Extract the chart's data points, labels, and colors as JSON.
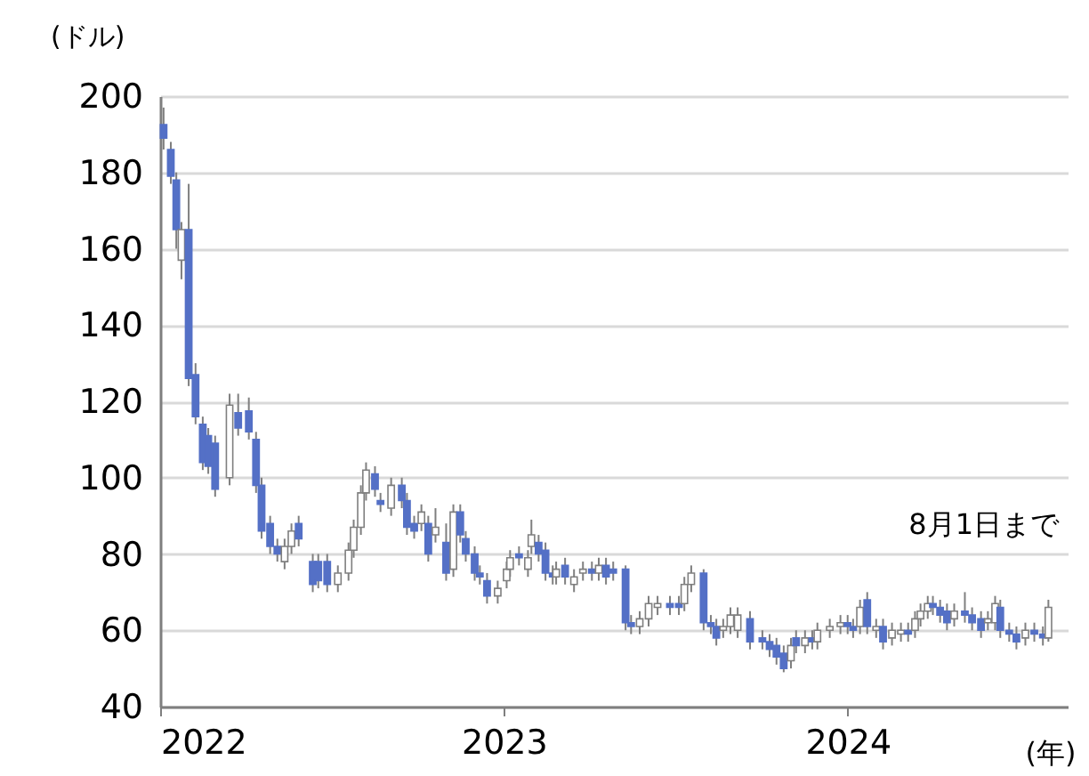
{
  "chart_data": {
    "type": "candlestick",
    "ylabel": "(ドル)",
    "xlabel": "(年)",
    "annotations": [
      "8月1日まで"
    ],
    "xlim": [
      2022,
      2024.64
    ],
    "xticks": [
      2022,
      2023,
      2024
    ],
    "ylim": [
      40,
      200
    ],
    "yticks": [
      40,
      60,
      80,
      100,
      120,
      140,
      160,
      180,
      200
    ],
    "grid": "y",
    "x": [
      2022.01,
      2022.031,
      2022.047,
      2022.062,
      2022.083,
      2022.103,
      2022.124,
      2022.14,
      2022.16,
      2022.202,
      2022.227,
      2022.258,
      2022.279,
      2022.295,
      2022.32,
      2022.341,
      2022.362,
      2022.382,
      2022.403,
      2022.444,
      2022.46,
      2022.486,
      2022.517,
      2022.548,
      2022.563,
      2022.584,
      2022.599,
      2022.625,
      2022.641,
      2022.672,
      2022.703,
      2022.718,
      2022.739,
      2022.76,
      2022.78,
      2022.801,
      2022.832,
      2022.853,
      2022.873,
      2022.889,
      2022.915,
      2022.93,
      2022.951,
      2022.982,
      2023.008,
      2023.018,
      2023.044,
      2023.07,
      2023.08,
      2023.101,
      2023.121,
      2023.142,
      2023.152,
      2023.178,
      2023.204,
      2023.23,
      2023.256,
      2023.276,
      2023.297,
      2023.318,
      2023.354,
      2023.37,
      2023.395,
      2023.421,
      2023.447,
      2023.483,
      2023.509,
      2023.525,
      2023.545,
      2023.581,
      2023.602,
      2023.618,
      2023.638,
      2023.659,
      2023.68,
      2023.716,
      2023.752,
      2023.773,
      2023.793,
      2023.814,
      2023.835,
      2023.85,
      2023.876,
      2023.897,
      2023.912,
      2023.948,
      2023.979,
      2024.0,
      2024.016,
      2024.036,
      2024.057,
      2024.083,
      2024.103,
      2024.129,
      2024.155,
      2024.176,
      2024.196,
      2024.212,
      2024.233,
      2024.248,
      2024.269,
      2024.289,
      2024.31,
      2024.341,
      2024.362,
      2024.388,
      2024.408,
      2024.429,
      2024.444,
      2024.47,
      2024.491,
      2024.517,
      2024.543,
      2024.568,
      2024.584
    ],
    "ohlc": [
      [
        192.5,
        197,
        186,
        189
      ],
      [
        186,
        188,
        177,
        179
      ],
      [
        178,
        180,
        160,
        165
      ],
      [
        157,
        167,
        152,
        165
      ],
      [
        165,
        177,
        124,
        126
      ],
      [
        127,
        130,
        114,
        116
      ],
      [
        114,
        116,
        102,
        104
      ],
      [
        111,
        113,
        101,
        103
      ],
      [
        109,
        111,
        95,
        97
      ],
      [
        100,
        122,
        98,
        119
      ],
      [
        117,
        122,
        111,
        113
      ],
      [
        117.5,
        121,
        110,
        112
      ],
      [
        110,
        112,
        96,
        98
      ],
      [
        98,
        100,
        84,
        86
      ],
      [
        88,
        90,
        80,
        82
      ],
      [
        82,
        84,
        78,
        80
      ],
      [
        78,
        84,
        76,
        82
      ],
      [
        82,
        88,
        80,
        86
      ],
      [
        88,
        90,
        82,
        84
      ],
      [
        78,
        80,
        70,
        72
      ],
      [
        78,
        80,
        71,
        73
      ],
      [
        78,
        80,
        70,
        72
      ],
      [
        72,
        77,
        70,
        75
      ],
      [
        75,
        83,
        73,
        81
      ],
      [
        81,
        89,
        79,
        87
      ],
      [
        87,
        98,
        85,
        96
      ],
      [
        96,
        104,
        94,
        102
      ],
      [
        101,
        103,
        95,
        97
      ],
      [
        94,
        96,
        91,
        93
      ],
      [
        92,
        100,
        90,
        98
      ],
      [
        98,
        100,
        92,
        94
      ],
      [
        94,
        96,
        85,
        87
      ],
      [
        88,
        90,
        84,
        86
      ],
      [
        88,
        93,
        86,
        91
      ],
      [
        88,
        90,
        78,
        80
      ],
      [
        85,
        92,
        83,
        87
      ],
      [
        83,
        88,
        73,
        75
      ],
      [
        76,
        93,
        74,
        91
      ],
      [
        91,
        93,
        83,
        85
      ],
      [
        84,
        86,
        78,
        80
      ],
      [
        80,
        82,
        73,
        75
      ],
      [
        75,
        77,
        72,
        74
      ],
      [
        73,
        75,
        67,
        69
      ],
      [
        69,
        73,
        67,
        71
      ],
      [
        73,
        78,
        71,
        76
      ],
      [
        76,
        81,
        74,
        79
      ],
      [
        80,
        82,
        77,
        79
      ],
      [
        76,
        81,
        74,
        79
      ],
      [
        82,
        89,
        80,
        85
      ],
      [
        83,
        85,
        78,
        80
      ],
      [
        81,
        83,
        73,
        75
      ],
      [
        75,
        77,
        72,
        74
      ],
      [
        74,
        78,
        72,
        76
      ],
      [
        77,
        79,
        72,
        74
      ],
      [
        72,
        76,
        70,
        74
      ],
      [
        75,
        78,
        73,
        76
      ],
      [
        76,
        78,
        73,
        75
      ],
      [
        75,
        79,
        73,
        77
      ],
      [
        77,
        79,
        72,
        74
      ],
      [
        76,
        78,
        73,
        75
      ],
      [
        76,
        77,
        60,
        62
      ],
      [
        62,
        64,
        59,
        61
      ],
      [
        61,
        65,
        59,
        63
      ],
      [
        63,
        69,
        61,
        67
      ],
      [
        66,
        69,
        64,
        67
      ],
      [
        67,
        69,
        64,
        66
      ],
      [
        67,
        69,
        64,
        66
      ],
      [
        67,
        74,
        65,
        72
      ],
      [
        72,
        77,
        70,
        75
      ],
      [
        75,
        76,
        60,
        62
      ],
      [
        62,
        64,
        59,
        61
      ],
      [
        61,
        63,
        56,
        58
      ],
      [
        60,
        63,
        58,
        61
      ],
      [
        61,
        66,
        59,
        64
      ],
      [
        60,
        66,
        58,
        64
      ],
      [
        63,
        65,
        55,
        57
      ],
      [
        58,
        60,
        55,
        57
      ],
      [
        57,
        59,
        53,
        55
      ],
      [
        56,
        58,
        51,
        53
      ],
      [
        54,
        56,
        49,
        50
      ],
      [
        52,
        58,
        50,
        56
      ],
      [
        58,
        60,
        54,
        56
      ],
      [
        56,
        60,
        54,
        58
      ],
      [
        58,
        60,
        55,
        57
      ],
      [
        57,
        62,
        55,
        60
      ],
      [
        60,
        63,
        58,
        61
      ],
      [
        61,
        64,
        59,
        62
      ],
      [
        62,
        64,
        59,
        61
      ],
      [
        61,
        63,
        58,
        60
      ],
      [
        61,
        68,
        59,
        66
      ],
      [
        68,
        70,
        59,
        61
      ],
      [
        60,
        63,
        58,
        61
      ],
      [
        61,
        63,
        55,
        57
      ],
      [
        58,
        62,
        56,
        60
      ],
      [
        59,
        62,
        57,
        60
      ],
      [
        60,
        62,
        57,
        59
      ],
      [
        60,
        65,
        58,
        63
      ],
      [
        63,
        67,
        61,
        65
      ],
      [
        65,
        69,
        63,
        67
      ],
      [
        67,
        69,
        64,
        66
      ],
      [
        66,
        68,
        62,
        64
      ],
      [
        65,
        67,
        60,
        62
      ],
      [
        63,
        67,
        61,
        65
      ],
      [
        65,
        70,
        62,
        64
      ],
      [
        64,
        66,
        60,
        62
      ],
      [
        63,
        65,
        58,
        60
      ],
      [
        62,
        65,
        60,
        63
      ],
      [
        62,
        69,
        60,
        67
      ],
      [
        66,
        68,
        58,
        60
      ],
      [
        60,
        62,
        57,
        59
      ],
      [
        59,
        61,
        55,
        57
      ],
      [
        58,
        62,
        56,
        60
      ],
      [
        60,
        62,
        57,
        59
      ],
      [
        59,
        61,
        56,
        58
      ],
      [
        58,
        68,
        57,
        66
      ]
    ],
    "colors": [
      "#5470c6",
      "#5470c6",
      "#5470c6",
      "#ffffff",
      "#5470c6",
      "#5470c6",
      "#5470c6",
      "#5470c6",
      "#5470c6",
      "#ffffff",
      "#5470c6",
      "#5470c6",
      "#5470c6",
      "#5470c6",
      "#5470c6",
      "#5470c6",
      "#ffffff",
      "#ffffff",
      "#5470c6",
      "#5470c6",
      "#5470c6",
      "#5470c6",
      "#ffffff",
      "#ffffff",
      "#ffffff",
      "#ffffff",
      "#ffffff",
      "#5470c6",
      "#5470c6",
      "#ffffff",
      "#5470c6",
      "#5470c6",
      "#5470c6",
      "#ffffff",
      "#5470c6",
      "#ffffff",
      "#5470c6",
      "#ffffff",
      "#5470c6",
      "#5470c6",
      "#5470c6",
      "#5470c6",
      "#5470c6",
      "#ffffff",
      "#ffffff",
      "#ffffff",
      "#5470c6",
      "#ffffff",
      "#ffffff",
      "#5470c6",
      "#5470c6",
      "#5470c6",
      "#ffffff",
      "#5470c6",
      "#ffffff",
      "#ffffff",
      "#5470c6",
      "#ffffff",
      "#5470c6",
      "#5470c6",
      "#5470c6",
      "#5470c6",
      "#ffffff",
      "#ffffff",
      "#ffffff",
      "#5470c6",
      "#5470c6",
      "#ffffff",
      "#ffffff",
      "#5470c6",
      "#5470c6",
      "#5470c6",
      "#ffffff",
      "#ffffff",
      "#ffffff",
      "#5470c6",
      "#5470c6",
      "#5470c6",
      "#5470c6",
      "#5470c6",
      "#ffffff",
      "#5470c6",
      "#ffffff",
      "#5470c6",
      "#ffffff",
      "#ffffff",
      "#ffffff",
      "#5470c6",
      "#5470c6",
      "#ffffff",
      "#5470c6",
      "#ffffff",
      "#5470c6",
      "#ffffff",
      "#ffffff",
      "#5470c6",
      "#ffffff",
      "#ffffff",
      "#ffffff",
      "#5470c6",
      "#5470c6",
      "#5470c6",
      "#ffffff",
      "#5470c6",
      "#5470c6",
      "#5470c6",
      "#ffffff",
      "#ffffff",
      "#5470c6",
      "#5470c6",
      "#5470c6",
      "#ffffff",
      "#5470c6",
      "#5470c6",
      "#ffffff"
    ]
  }
}
